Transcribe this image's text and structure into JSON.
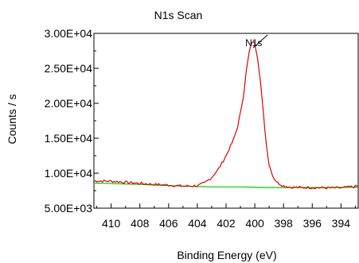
{
  "chart_data": {
    "type": "line",
    "title": "N1s Scan",
    "xlabel": "Binding Energy (eV)",
    "ylabel": "Counts / s",
    "xlim": [
      411.2,
      392.8
    ],
    "ylim": [
      5000,
      30000
    ],
    "x_reversed": true,
    "x_ticks": [
      410,
      408,
      406,
      404,
      402,
      400,
      398,
      396,
      394
    ],
    "y_ticks": [
      5000,
      10000,
      15000,
      20000,
      25000,
      30000
    ],
    "y_tick_labels": [
      "5.00E+03",
      "1.00E+04",
      "1.50E+04",
      "2.00E+04",
      "2.50E+04",
      "3.00E+04"
    ],
    "grid": false,
    "series": [
      {
        "role": "spectrum",
        "color": "#e00000",
        "x": [
          411.2,
          410,
          409,
          408,
          407,
          406,
          405,
          404,
          403.5,
          403,
          402.5,
          402,
          401.5,
          401.2,
          401,
          400.8,
          400.6,
          400.4,
          400.2,
          400,
          399.8,
          399.6,
          399.4,
          399.2,
          399,
          398.7,
          398.4,
          398,
          397.5,
          397,
          396,
          395,
          394,
          393,
          392.8
        ],
        "y": [
          8900,
          8850,
          8700,
          8550,
          8400,
          8300,
          8150,
          8200,
          8600,
          9400,
          10700,
          12500,
          14700,
          16600,
          18600,
          21000,
          24500,
          27200,
          28800,
          28600,
          26500,
          23000,
          18500,
          14200,
          11200,
          9400,
          8600,
          8200,
          8000,
          7950,
          7950,
          7900,
          7900,
          8100,
          8200
        ]
      },
      {
        "role": "background",
        "color": "#00cc00",
        "x": [
          411.2,
          408,
          405,
          403,
          401,
          400,
          399,
          397,
          395,
          392.8
        ],
        "y": [
          8600,
          8400,
          8150,
          8050,
          8050,
          8000,
          7950,
          7950,
          7950,
          8000
        ]
      }
    ],
    "annotations": [
      {
        "text": "N1s",
        "x": 400.0,
        "y": 28800
      }
    ]
  }
}
